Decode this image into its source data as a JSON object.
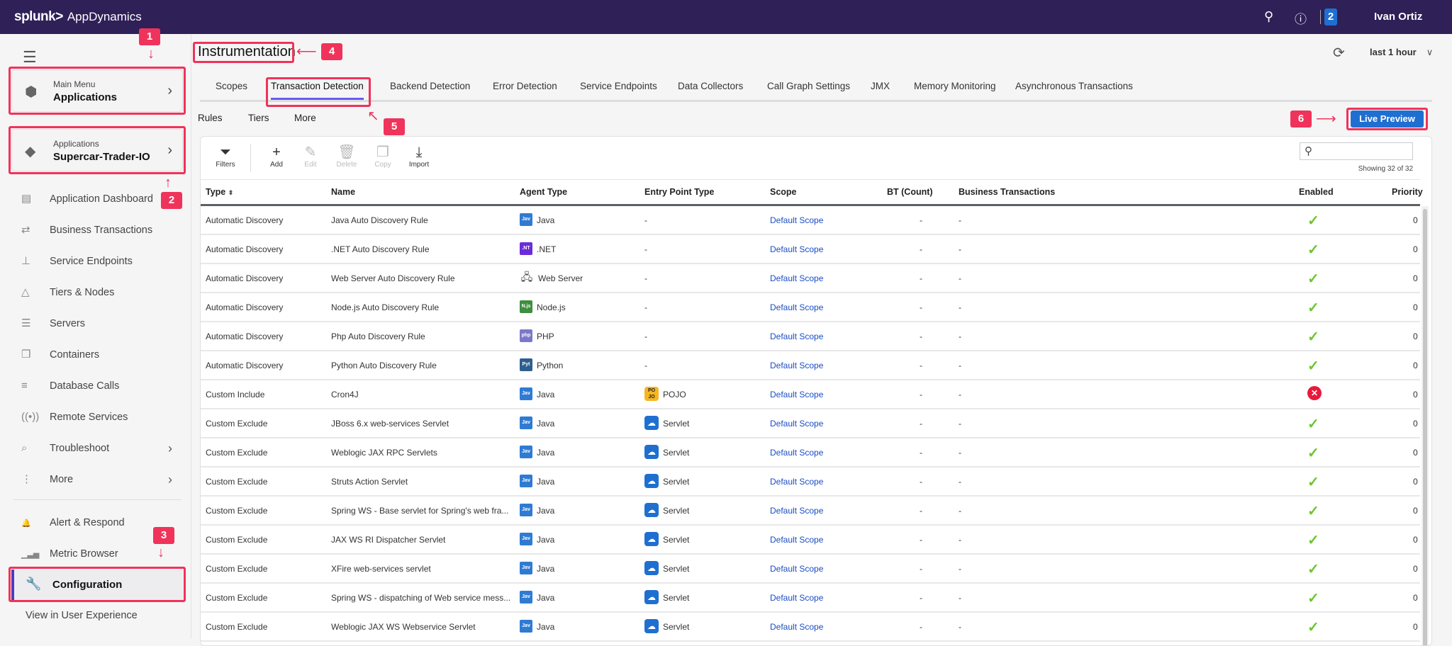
{
  "topbar": {
    "brand": "splunk>",
    "product": "AppDynamics",
    "search_icon": "search-icon",
    "help_icon": "help-icon",
    "notification_count": "2",
    "user": "Ivan Ortiz"
  },
  "sidebar": {
    "main_menu": {
      "label": "Main Menu",
      "value": "Applications"
    },
    "application": {
      "label": "Applications",
      "value": "Supercar-Trader-IO"
    },
    "items": [
      {
        "label": "Application Dashboard",
        "icon": "dashboard-icon",
        "glyph": "▤"
      },
      {
        "label": "Business Transactions",
        "icon": "transactions-icon",
        "glyph": "⇄"
      },
      {
        "label": "Service Endpoints",
        "icon": "endpoints-icon",
        "glyph": "⊥"
      },
      {
        "label": "Tiers & Nodes",
        "icon": "tiers-icon",
        "glyph": "△"
      },
      {
        "label": "Servers",
        "icon": "servers-icon",
        "glyph": "☰"
      },
      {
        "label": "Containers",
        "icon": "containers-icon",
        "glyph": "❒"
      },
      {
        "label": "Database Calls",
        "icon": "database-icon",
        "glyph": "≡"
      },
      {
        "label": "Remote Services",
        "icon": "remote-services-icon",
        "glyph": "((•))"
      },
      {
        "label": "Troubleshoot",
        "icon": "troubleshoot-icon",
        "glyph": "⌕",
        "chevron": true
      },
      {
        "label": "More",
        "icon": "more-icon",
        "glyph": "⋮",
        "chevron": true
      }
    ],
    "bottom_items": [
      {
        "label": "Alert & Respond",
        "icon": "bell-icon",
        "glyph": "🔔"
      },
      {
        "label": "Metric Browser",
        "icon": "metric-icon",
        "glyph": "▁▃▅"
      }
    ],
    "configuration": "Configuration",
    "view_ux": "View in User Experience"
  },
  "header": {
    "title": "Instrumentation",
    "time_range": "last 1 hour"
  },
  "tabs": [
    "Scopes",
    "Transaction Detection",
    "Backend Detection",
    "Error Detection",
    "Service Endpoints",
    "Data Collectors",
    "Call Graph Settings",
    "JMX",
    "Memory Monitoring",
    "Asynchronous Transactions"
  ],
  "active_tab": "Transaction Detection",
  "subtabs": [
    "Rules",
    "Tiers",
    "More"
  ],
  "live_preview": "Live Preview",
  "toolbar": {
    "filters": "Filters",
    "add": "Add",
    "edit": "Edit",
    "delete": "Delete",
    "copy": "Copy",
    "import": "Import"
  },
  "search": {
    "placeholder": "",
    "showing": "Showing 32 of 32"
  },
  "columns": [
    "Type",
    "Name",
    "Agent Type",
    "Entry Point Type",
    "Scope",
    "BT (Count)",
    "Business Transactions",
    "Enabled",
    "Priority"
  ],
  "agent_colors": {
    "Java": "#2f7bd3",
    ".NET": "#6c2bd9",
    "PHP": "#7c78c9",
    "Python": "#2e5e8f",
    "Node.js": "#3e8e3e"
  },
  "agent_badges": {
    "Java": "Jav",
    ".NET": ".NT",
    "PHP": "php",
    "Python": "Pyt",
    "Node.js": "N.js"
  },
  "rows": [
    {
      "type": "Automatic Discovery",
      "name": "Java Auto Discovery Rule",
      "agent": "Java",
      "entry": "-",
      "scope": "Default Scope",
      "bt_count": "-",
      "bts": "-",
      "enabled": true,
      "priority": "0"
    },
    {
      "type": "Automatic Discovery",
      "name": ".NET Auto Discovery Rule",
      "agent": ".NET",
      "entry": "-",
      "scope": "Default Scope",
      "bt_count": "-",
      "bts": "-",
      "enabled": true,
      "priority": "0"
    },
    {
      "type": "Automatic Discovery",
      "name": "Web Server Auto Discovery Rule",
      "agent": "Web Server",
      "entry": "-",
      "scope": "Default Scope",
      "bt_count": "-",
      "bts": "-",
      "enabled": true,
      "priority": "0"
    },
    {
      "type": "Automatic Discovery",
      "name": "Node.js Auto Discovery Rule",
      "agent": "Node.js",
      "entry": "-",
      "scope": "Default Scope",
      "bt_count": "-",
      "bts": "-",
      "enabled": true,
      "priority": "0"
    },
    {
      "type": "Automatic Discovery",
      "name": "Php Auto Discovery Rule",
      "agent": "PHP",
      "entry": "-",
      "scope": "Default Scope",
      "bt_count": "-",
      "bts": "-",
      "enabled": true,
      "priority": "0"
    },
    {
      "type": "Automatic Discovery",
      "name": "Python Auto Discovery Rule",
      "agent": "Python",
      "entry": "-",
      "scope": "Default Scope",
      "bt_count": "-",
      "bts": "-",
      "enabled": true,
      "priority": "0"
    },
    {
      "type": "Custom Include",
      "name": "Cron4J",
      "agent": "Java",
      "entry": "POJO",
      "scope": "Default Scope",
      "bt_count": "-",
      "bts": "-",
      "enabled": false,
      "priority": "0"
    },
    {
      "type": "Custom Exclude",
      "name": "JBoss 6.x web-services Servlet",
      "agent": "Java",
      "entry": "Servlet",
      "scope": "Default Scope",
      "bt_count": "-",
      "bts": "-",
      "enabled": true,
      "priority": "0"
    },
    {
      "type": "Custom Exclude",
      "name": "Weblogic JAX RPC Servlets",
      "agent": "Java",
      "entry": "Servlet",
      "scope": "Default Scope",
      "bt_count": "-",
      "bts": "-",
      "enabled": true,
      "priority": "0"
    },
    {
      "type": "Custom Exclude",
      "name": "Struts Action Servlet",
      "agent": "Java",
      "entry": "Servlet",
      "scope": "Default Scope",
      "bt_count": "-",
      "bts": "-",
      "enabled": true,
      "priority": "0"
    },
    {
      "type": "Custom Exclude",
      "name": "Spring WS - Base servlet for Spring's web fra...",
      "agent": "Java",
      "entry": "Servlet",
      "scope": "Default Scope",
      "bt_count": "-",
      "bts": "-",
      "enabled": true,
      "priority": "0"
    },
    {
      "type": "Custom Exclude",
      "name": "JAX WS RI Dispatcher Servlet",
      "agent": "Java",
      "entry": "Servlet",
      "scope": "Default Scope",
      "bt_count": "-",
      "bts": "-",
      "enabled": true,
      "priority": "0"
    },
    {
      "type": "Custom Exclude",
      "name": "XFire web-services servlet",
      "agent": "Java",
      "entry": "Servlet",
      "scope": "Default Scope",
      "bt_count": "-",
      "bts": "-",
      "enabled": true,
      "priority": "0"
    },
    {
      "type": "Custom Exclude",
      "name": "Spring WS - dispatching of Web service mess...",
      "agent": "Java",
      "entry": "Servlet",
      "scope": "Default Scope",
      "bt_count": "-",
      "bts": "-",
      "enabled": true,
      "priority": "0"
    },
    {
      "type": "Custom Exclude",
      "name": "Weblogic JAX WS Webservice Servlet",
      "agent": "Java",
      "entry": "Servlet",
      "scope": "Default Scope",
      "bt_count": "-",
      "bts": "-",
      "enabled": true,
      "priority": "0"
    }
  ],
  "annotations": [
    "1",
    "2",
    "3",
    "4",
    "5",
    "6"
  ],
  "colors": {
    "topbar": "#2f2058",
    "accent": "#6b5cf0",
    "primary": "#1f6fd1",
    "annotation": "#f0335a",
    "enabled": "#6cc62f",
    "disabled": "#e8193c"
  }
}
